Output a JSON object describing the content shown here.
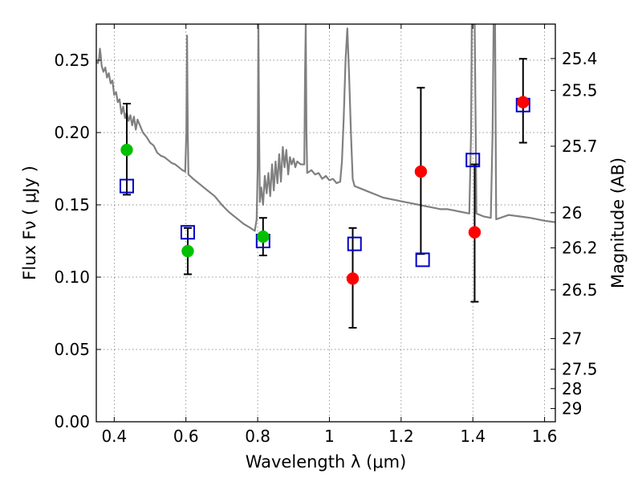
{
  "chart_data": {
    "type": "scatter",
    "title": "",
    "xlabel": "Wavelength  λ (μm)",
    "ylabel": "Flux  Fν  ( μJy )",
    "y2label": "Magnitude (AB)",
    "xlim": [
      0.35,
      1.63
    ],
    "ylim": [
      0.0,
      0.275
    ],
    "grid": true,
    "x_ticks": [
      {
        "value": 0.4,
        "label": "0.4"
      },
      {
        "value": 0.6,
        "label": "0.6"
      },
      {
        "value": 0.8,
        "label": "0.8"
      },
      {
        "value": 1.0,
        "label": "1"
      },
      {
        "value": 1.2,
        "label": "1.2"
      },
      {
        "value": 1.4,
        "label": "1.4"
      },
      {
        "value": 1.6,
        "label": "1.6"
      }
    ],
    "y_ticks": [
      {
        "value": 0.0,
        "label": "0.00"
      },
      {
        "value": 0.05,
        "label": "0.05"
      },
      {
        "value": 0.1,
        "label": "0.10"
      },
      {
        "value": 0.15,
        "label": "0.15"
      },
      {
        "value": 0.2,
        "label": "0.20"
      },
      {
        "value": 0.25,
        "label": "0.25"
      }
    ],
    "mag_ticks": [
      {
        "value": 25.4,
        "label": "25.4"
      },
      {
        "value": 25.5,
        "label": "25.5"
      },
      {
        "value": 25.7,
        "label": "25.7"
      },
      {
        "value": 26.0,
        "label": "26"
      },
      {
        "value": 26.2,
        "label": "26.2"
      },
      {
        "value": 26.5,
        "label": "26.5"
      },
      {
        "value": 27.0,
        "label": "27"
      },
      {
        "value": 27.5,
        "label": "27.5"
      },
      {
        "value": 28.0,
        "label": "28"
      },
      {
        "value": 29.0,
        "label": "29"
      }
    ],
    "series": [
      {
        "name": "model SED",
        "kind": "line",
        "color": "#808080",
        "points": [
          [
            0.35,
            0.249
          ],
          [
            0.355,
            0.248
          ],
          [
            0.358,
            0.252
          ],
          [
            0.36,
            0.258
          ],
          [
            0.362,
            0.254
          ],
          [
            0.365,
            0.246
          ],
          [
            0.37,
            0.242
          ],
          [
            0.375,
            0.245
          ],
          [
            0.38,
            0.238
          ],
          [
            0.385,
            0.241
          ],
          [
            0.39,
            0.234
          ],
          [
            0.395,
            0.236
          ],
          [
            0.4,
            0.226
          ],
          [
            0.405,
            0.228
          ],
          [
            0.41,
            0.221
          ],
          [
            0.415,
            0.223
          ],
          [
            0.42,
            0.213
          ],
          [
            0.425,
            0.218
          ],
          [
            0.43,
            0.21
          ],
          [
            0.435,
            0.214
          ],
          [
            0.44,
            0.208
          ],
          [
            0.445,
            0.212
          ],
          [
            0.45,
            0.205
          ],
          [
            0.455,
            0.211
          ],
          [
            0.46,
            0.202
          ],
          [
            0.465,
            0.209
          ],
          [
            0.47,
            0.206
          ],
          [
            0.48,
            0.2
          ],
          [
            0.49,
            0.197
          ],
          [
            0.5,
            0.193
          ],
          [
            0.51,
            0.191
          ],
          [
            0.52,
            0.186
          ],
          [
            0.53,
            0.184
          ],
          [
            0.54,
            0.183
          ],
          [
            0.55,
            0.181
          ],
          [
            0.56,
            0.179
          ],
          [
            0.57,
            0.178
          ],
          [
            0.58,
            0.176
          ],
          [
            0.59,
            0.174
          ],
          [
            0.598,
            0.173
          ],
          [
            0.601,
            0.2
          ],
          [
            0.603,
            0.267
          ],
          [
            0.605,
            0.2
          ],
          [
            0.607,
            0.171
          ],
          [
            0.62,
            0.168
          ],
          [
            0.64,
            0.164
          ],
          [
            0.66,
            0.16
          ],
          [
            0.68,
            0.156
          ],
          [
            0.7,
            0.15
          ],
          [
            0.72,
            0.145
          ],
          [
            0.74,
            0.141
          ],
          [
            0.76,
            0.137
          ],
          [
            0.78,
            0.134
          ],
          [
            0.792,
            0.132
          ],
          [
            0.797,
            0.14
          ],
          [
            0.8,
            0.175
          ],
          [
            0.802,
            0.275
          ],
          [
            0.804,
            0.2
          ],
          [
            0.806,
            0.152
          ],
          [
            0.81,
            0.162
          ],
          [
            0.815,
            0.15
          ],
          [
            0.82,
            0.17
          ],
          [
            0.825,
            0.158
          ],
          [
            0.83,
            0.172
          ],
          [
            0.835,
            0.156
          ],
          [
            0.84,
            0.178
          ],
          [
            0.845,
            0.16
          ],
          [
            0.85,
            0.18
          ],
          [
            0.855,
            0.165
          ],
          [
            0.86,
            0.185
          ],
          [
            0.865,
            0.166
          ],
          [
            0.87,
            0.19
          ],
          [
            0.875,
            0.176
          ],
          [
            0.88,
            0.188
          ],
          [
            0.885,
            0.171
          ],
          [
            0.89,
            0.183
          ],
          [
            0.895,
            0.178
          ],
          [
            0.9,
            0.182
          ],
          [
            0.905,
            0.176
          ],
          [
            0.91,
            0.18
          ],
          [
            0.92,
            0.178
          ],
          [
            0.93,
            0.178
          ],
          [
            0.932,
            0.24
          ],
          [
            0.934,
            0.275
          ],
          [
            0.936,
            0.2
          ],
          [
            0.938,
            0.172
          ],
          [
            0.95,
            0.174
          ],
          [
            0.96,
            0.171
          ],
          [
            0.97,
            0.172
          ],
          [
            0.98,
            0.168
          ],
          [
            0.99,
            0.17
          ],
          [
            1.0,
            0.167
          ],
          [
            1.01,
            0.168
          ],
          [
            1.02,
            0.165
          ],
          [
            1.03,
            0.166
          ],
          [
            1.035,
            0.18
          ],
          [
            1.04,
            0.21
          ],
          [
            1.045,
            0.25
          ],
          [
            1.05,
            0.272
          ],
          [
            1.055,
            0.24
          ],
          [
            1.06,
            0.2
          ],
          [
            1.065,
            0.168
          ],
          [
            1.07,
            0.163
          ],
          [
            1.09,
            0.161
          ],
          [
            1.11,
            0.159
          ],
          [
            1.13,
            0.157
          ],
          [
            1.15,
            0.155
          ],
          [
            1.17,
            0.154
          ],
          [
            1.19,
            0.153
          ],
          [
            1.21,
            0.152
          ],
          [
            1.23,
            0.151
          ],
          [
            1.25,
            0.15
          ],
          [
            1.27,
            0.149
          ],
          [
            1.29,
            0.148
          ],
          [
            1.31,
            0.147
          ],
          [
            1.33,
            0.147
          ],
          [
            1.35,
            0.146
          ],
          [
            1.37,
            0.145
          ],
          [
            1.39,
            0.144
          ],
          [
            1.395,
            0.2
          ],
          [
            1.397,
            0.275
          ],
          [
            1.405,
            0.275
          ],
          [
            1.408,
            0.2
          ],
          [
            1.41,
            0.144
          ],
          [
            1.43,
            0.142
          ],
          [
            1.45,
            0.141
          ],
          [
            1.455,
            0.2
          ],
          [
            1.458,
            0.275
          ],
          [
            1.462,
            0.275
          ],
          [
            1.465,
            0.14
          ],
          [
            1.5,
            0.143
          ],
          [
            1.53,
            0.142
          ],
          [
            1.56,
            0.141
          ],
          [
            1.6,
            0.139
          ],
          [
            1.63,
            0.138
          ]
        ]
      },
      {
        "name": "green photometry",
        "kind": "point",
        "marker": "circle",
        "color": "#00c000",
        "points": [
          {
            "x": 0.435,
            "y": 0.188,
            "err_low": 0.157,
            "err_high": 0.22
          },
          {
            "x": 0.605,
            "y": 0.118,
            "err_low": 0.102,
            "err_high": 0.134
          },
          {
            "x": 0.815,
            "y": 0.128,
            "err_low": 0.115,
            "err_high": 0.141
          }
        ]
      },
      {
        "name": "red photometry",
        "kind": "point",
        "marker": "circle",
        "color": "#ff0000",
        "points": [
          {
            "x": 1.065,
            "y": 0.099,
            "err_low": 0.065,
            "err_high": 0.134
          },
          {
            "x": 1.255,
            "y": 0.173,
            "err_low": 0.116,
            "err_high": 0.231
          },
          {
            "x": 1.405,
            "y": 0.131,
            "err_low": 0.083,
            "err_high": 0.178
          },
          {
            "x": 1.54,
            "y": 0.221,
            "err_low": 0.193,
            "err_high": 0.251
          }
        ]
      },
      {
        "name": "model photometry",
        "kind": "point",
        "marker": "open-square",
        "color": "#0000cc",
        "points": [
          {
            "x": 0.435,
            "y": 0.163
          },
          {
            "x": 0.605,
            "y": 0.131
          },
          {
            "x": 0.815,
            "y": 0.125
          },
          {
            "x": 1.07,
            "y": 0.123
          },
          {
            "x": 1.26,
            "y": 0.112
          },
          {
            "x": 1.4,
            "y": 0.181
          },
          {
            "x": 1.54,
            "y": 0.219
          }
        ]
      }
    ]
  }
}
